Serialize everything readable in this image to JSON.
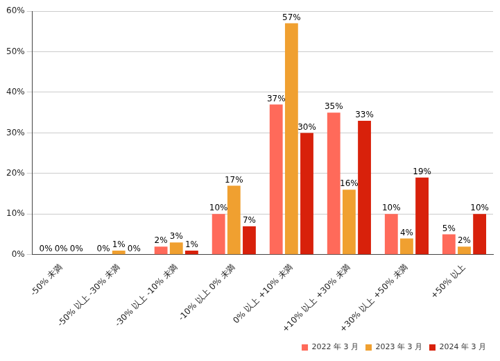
{
  "chart_data": {
    "type": "bar",
    "categories": [
      "-50% 未満",
      "-50% 以上 -30% 未満",
      "-30% 以上 -10% 未満",
      "-10% 以上 0% 未満",
      "0% 以上 +10% 未満",
      "+10% 以上 +30% 未満",
      "+30% 以上 +50% 未満",
      "+50% 以上"
    ],
    "series": [
      {
        "name": "2022 年 3 月",
        "color": "#ff6a5a",
        "values": [
          0,
          0,
          2,
          10,
          37,
          35,
          10,
          5
        ],
        "value_labels": [
          "0%",
          "0%",
          "2%",
          "10%",
          "37%",
          "35%",
          "10%",
          "5%"
        ]
      },
      {
        "name": "2023 年 3 月",
        "color": "#f0a030",
        "values": [
          0,
          1,
          3,
          17,
          57,
          16,
          4,
          2
        ],
        "value_labels": [
          "0%",
          "1%",
          "3%",
          "17%",
          "57%",
          "16%",
          "4%",
          "2%"
        ]
      },
      {
        "name": "2024 年 3 月",
        "color": "#d8210b",
        "values": [
          0,
          0,
          1,
          7,
          30,
          33,
          19,
          10
        ],
        "value_labels": [
          "0%",
          "0%",
          "1%",
          "7%",
          "30%",
          "33%",
          "19%",
          "10%"
        ]
      }
    ],
    "ylim": [
      0,
      60
    ],
    "yticks": [
      {
        "value": 0,
        "label": "0%"
      },
      {
        "value": 10,
        "label": "10%"
      },
      {
        "value": 20,
        "label": "20%"
      },
      {
        "value": 30,
        "label": "30%"
      },
      {
        "value": 40,
        "label": "40%"
      },
      {
        "value": 50,
        "label": "50%"
      },
      {
        "value": 60,
        "label": "60%"
      }
    ],
    "grid": true,
    "legend": "lower right",
    "data_labels": true
  }
}
